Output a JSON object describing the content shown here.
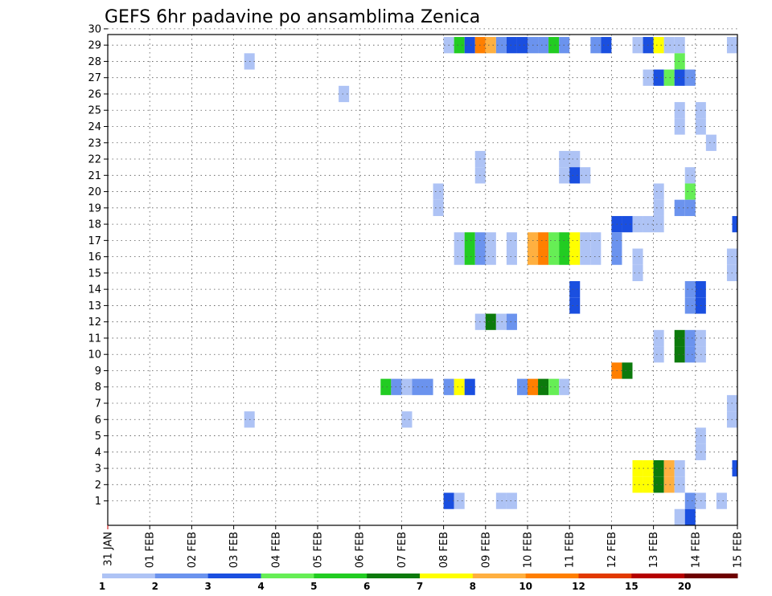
{
  "chart_data": {
    "type": "heatmap",
    "title": "GEFS 6hr padavine po ansamblima Zenica",
    "x_tick_labels": [
      "31 JAN",
      "01 FEB",
      "02 FEB",
      "03 FEB",
      "04 FEB",
      "05 FEB",
      "06 FEB",
      "07 FEB",
      "08 FEB",
      "09 FEB",
      "10 FEB",
      "11 FEB",
      "12 FEB",
      "13 FEB",
      "14 FEB",
      "15 FEB"
    ],
    "y_tick_labels": [
      "1",
      "2",
      "3",
      "4",
      "5",
      "6",
      "7",
      "8",
      "9",
      "10",
      "11",
      "12",
      "13",
      "14",
      "15",
      "16",
      "17",
      "18",
      "19",
      "20",
      "21",
      "22",
      "23",
      "24",
      "25",
      "26",
      "27",
      "28",
      "29",
      "30"
    ],
    "xlim_days": [
      0,
      15
    ],
    "ylim": [
      0,
      30
    ],
    "grid": true,
    "legend": {
      "placement": "bottom",
      "labels": [
        "1",
        "2",
        "3",
        "4",
        "5",
        "6",
        "7",
        "8",
        "10",
        "12",
        "15",
        "20"
      ],
      "colors": [
        "#aec3f5",
        "#6b93ee",
        "#1a4fe0",
        "#66ee55",
        "#22cc22",
        "#0c7a0c",
        "#ffff00",
        "#ffb040",
        "#ff7f00",
        "#e23a00",
        "#b50000",
        "#6e0000"
      ]
    },
    "cells": [
      {
        "m": 29,
        "d": 8.0,
        "c": 0
      },
      {
        "m": 29,
        "d": 8.25,
        "c": 4
      },
      {
        "m": 29,
        "d": 8.5,
        "c": 2
      },
      {
        "m": 29,
        "d": 8.75,
        "c": 8
      },
      {
        "m": 29,
        "d": 9.0,
        "c": 7
      },
      {
        "m": 29,
        "d": 9.25,
        "c": 1
      },
      {
        "m": 29,
        "d": 9.5,
        "c": 2
      },
      {
        "m": 29,
        "d": 9.75,
        "c": 2
      },
      {
        "m": 29,
        "d": 10.0,
        "c": 1
      },
      {
        "m": 29,
        "d": 10.25,
        "c": 1
      },
      {
        "m": 29,
        "d": 10.5,
        "c": 4
      },
      {
        "m": 29,
        "d": 10.75,
        "c": 1
      },
      {
        "m": 29,
        "d": 11.5,
        "c": 1
      },
      {
        "m": 29,
        "d": 11.75,
        "c": 2
      },
      {
        "m": 29,
        "d": 12.5,
        "c": 0
      },
      {
        "m": 29,
        "d": 12.75,
        "c": 2
      },
      {
        "m": 29,
        "d": 13.0,
        "c": 6
      },
      {
        "m": 29,
        "d": 13.25,
        "c": 0
      },
      {
        "m": 29,
        "d": 13.5,
        "c": 0
      },
      {
        "m": 29,
        "d": 14.75,
        "c": 0
      },
      {
        "m": 28,
        "d": 3.25,
        "c": 0
      },
      {
        "m": 28,
        "d": 13.5,
        "c": 3
      },
      {
        "m": 27,
        "d": 12.75,
        "c": 0
      },
      {
        "m": 27,
        "d": 13.0,
        "c": 2
      },
      {
        "m": 27,
        "d": 13.25,
        "c": 3
      },
      {
        "m": 27,
        "d": 13.5,
        "c": 2
      },
      {
        "m": 27,
        "d": 13.75,
        "c": 1
      },
      {
        "m": 26,
        "d": 5.5,
        "c": 0
      },
      {
        "m": 25,
        "d": 13.5,
        "c": 0
      },
      {
        "m": 25,
        "d": 14.0,
        "c": 0
      },
      {
        "m": 24,
        "d": 13.5,
        "c": 0
      },
      {
        "m": 24,
        "d": 14.0,
        "c": 0
      },
      {
        "m": 23,
        "d": 14.25,
        "c": 0
      },
      {
        "m": 22,
        "d": 8.75,
        "c": 0
      },
      {
        "m": 22,
        "d": 10.75,
        "c": 0
      },
      {
        "m": 22,
        "d": 11.0,
        "c": 0
      },
      {
        "m": 21,
        "d": 8.75,
        "c": 0
      },
      {
        "m": 21,
        "d": 10.75,
        "c": 0
      },
      {
        "m": 21,
        "d": 11.0,
        "c": 2
      },
      {
        "m": 21,
        "d": 11.25,
        "c": 0
      },
      {
        "m": 21,
        "d": 13.75,
        "c": 0
      },
      {
        "m": 20,
        "d": 7.75,
        "c": 0
      },
      {
        "m": 20,
        "d": 13.0,
        "c": 0
      },
      {
        "m": 20,
        "d": 13.75,
        "c": 3
      },
      {
        "m": 19,
        "d": 7.75,
        "c": 0
      },
      {
        "m": 19,
        "d": 13.0,
        "c": 0
      },
      {
        "m": 19,
        "d": 13.5,
        "c": 1
      },
      {
        "m": 19,
        "d": 13.75,
        "c": 1
      },
      {
        "m": 18,
        "d": 12.0,
        "c": 2
      },
      {
        "m": 18,
        "d": 12.25,
        "c": 2
      },
      {
        "m": 18,
        "d": 12.5,
        "c": 0
      },
      {
        "m": 18,
        "d": 12.75,
        "c": 0
      },
      {
        "m": 18,
        "d": 13.0,
        "c": 0
      },
      {
        "m": 18,
        "d": 14.875,
        "c": 2
      },
      {
        "m": 17,
        "d": 8.25,
        "c": 0
      },
      {
        "m": 17,
        "d": 8.5,
        "c": 4
      },
      {
        "m": 17,
        "d": 8.75,
        "c": 1
      },
      {
        "m": 17,
        "d": 9.0,
        "c": 0
      },
      {
        "m": 17,
        "d": 9.5,
        "c": 0
      },
      {
        "m": 17,
        "d": 10.0,
        "c": 7
      },
      {
        "m": 17,
        "d": 10.25,
        "c": 8
      },
      {
        "m": 17,
        "d": 10.5,
        "c": 3
      },
      {
        "m": 17,
        "d": 10.75,
        "c": 4
      },
      {
        "m": 17,
        "d": 11.0,
        "c": 6
      },
      {
        "m": 17,
        "d": 11.25,
        "c": 0
      },
      {
        "m": 17,
        "d": 11.5,
        "c": 0
      },
      {
        "m": 17,
        "d": 12.0,
        "c": 1
      },
      {
        "m": 16,
        "d": 8.25,
        "c": 0
      },
      {
        "m": 16,
        "d": 8.5,
        "c": 4
      },
      {
        "m": 16,
        "d": 8.75,
        "c": 1
      },
      {
        "m": 16,
        "d": 9.0,
        "c": 0
      },
      {
        "m": 16,
        "d": 9.5,
        "c": 0
      },
      {
        "m": 16,
        "d": 10.0,
        "c": 7
      },
      {
        "m": 16,
        "d": 10.25,
        "c": 8
      },
      {
        "m": 16,
        "d": 10.5,
        "c": 3
      },
      {
        "m": 16,
        "d": 10.75,
        "c": 4
      },
      {
        "m": 16,
        "d": 11.0,
        "c": 6
      },
      {
        "m": 16,
        "d": 11.25,
        "c": 0
      },
      {
        "m": 16,
        "d": 11.5,
        "c": 0
      },
      {
        "m": 16,
        "d": 12.0,
        "c": 1
      },
      {
        "m": 16,
        "d": 12.5,
        "c": 0
      },
      {
        "m": 16,
        "d": 14.75,
        "c": 0
      },
      {
        "m": 15,
        "d": 12.5,
        "c": 0
      },
      {
        "m": 15,
        "d": 14.75,
        "c": 0
      },
      {
        "m": 14,
        "d": 11.0,
        "c": 2
      },
      {
        "m": 14,
        "d": 13.75,
        "c": 1
      },
      {
        "m": 14,
        "d": 14.0,
        "c": 2
      },
      {
        "m": 13,
        "d": 11.0,
        "c": 2
      },
      {
        "m": 13,
        "d": 13.75,
        "c": 1
      },
      {
        "m": 13,
        "d": 14.0,
        "c": 2
      },
      {
        "m": 12,
        "d": 8.75,
        "c": 0
      },
      {
        "m": 12,
        "d": 9.0,
        "c": 5
      },
      {
        "m": 12,
        "d": 9.25,
        "c": 0
      },
      {
        "m": 12,
        "d": 9.5,
        "c": 1
      },
      {
        "m": 11,
        "d": 13.0,
        "c": 0
      },
      {
        "m": 11,
        "d": 13.5,
        "c": 5
      },
      {
        "m": 11,
        "d": 13.75,
        "c": 1
      },
      {
        "m": 11,
        "d": 14.0,
        "c": 0
      },
      {
        "m": 10,
        "d": 13.0,
        "c": 0
      },
      {
        "m": 10,
        "d": 13.5,
        "c": 5
      },
      {
        "m": 10,
        "d": 13.75,
        "c": 1
      },
      {
        "m": 10,
        "d": 14.0,
        "c": 0
      },
      {
        "m": 9,
        "d": 12.0,
        "c": 8
      },
      {
        "m": 9,
        "d": 12.25,
        "c": 5
      },
      {
        "m": 8,
        "d": 6.5,
        "c": 4
      },
      {
        "m": 8,
        "d": 6.75,
        "c": 1
      },
      {
        "m": 8,
        "d": 7.0,
        "c": 0
      },
      {
        "m": 8,
        "d": 7.25,
        "c": 1
      },
      {
        "m": 8,
        "d": 7.5,
        "c": 1
      },
      {
        "m": 8,
        "d": 8.0,
        "c": 1
      },
      {
        "m": 8,
        "d": 8.25,
        "c": 6
      },
      {
        "m": 8,
        "d": 8.5,
        "c": 2
      },
      {
        "m": 8,
        "d": 9.75,
        "c": 1
      },
      {
        "m": 8,
        "d": 10.0,
        "c": 8
      },
      {
        "m": 8,
        "d": 10.25,
        "c": 5
      },
      {
        "m": 8,
        "d": 10.5,
        "c": 3
      },
      {
        "m": 8,
        "d": 10.75,
        "c": 0
      },
      {
        "m": 7,
        "d": 14.75,
        "c": 0
      },
      {
        "m": 6,
        "d": 3.25,
        "c": 0
      },
      {
        "m": 6,
        "d": 7.0,
        "c": 0
      },
      {
        "m": 6,
        "d": 14.75,
        "c": 0
      },
      {
        "m": 5,
        "d": 14.0,
        "c": 0
      },
      {
        "m": 4,
        "d": 14.0,
        "c": 0
      },
      {
        "m": 3,
        "d": 12.5,
        "c": 6
      },
      {
        "m": 3,
        "d": 12.75,
        "c": 6
      },
      {
        "m": 3,
        "d": 13.0,
        "c": 5
      },
      {
        "m": 3,
        "d": 13.25,
        "c": 7
      },
      {
        "m": 3,
        "d": 13.5,
        "c": 0
      },
      {
        "m": 3,
        "d": 14.875,
        "c": 2
      },
      {
        "m": 2,
        "d": 12.5,
        "c": 6
      },
      {
        "m": 2,
        "d": 12.75,
        "c": 6
      },
      {
        "m": 2,
        "d": 13.0,
        "c": 5
      },
      {
        "m": 2,
        "d": 13.25,
        "c": 7
      },
      {
        "m": 2,
        "d": 13.5,
        "c": 0
      },
      {
        "m": 1,
        "d": 8.0,
        "c": 2
      },
      {
        "m": 1,
        "d": 8.25,
        "c": 0
      },
      {
        "m": 1,
        "d": 9.25,
        "c": 0
      },
      {
        "m": 1,
        "d": 9.5,
        "c": 0
      },
      {
        "m": 1,
        "d": 13.75,
        "c": 1
      },
      {
        "m": 1,
        "d": 14.0,
        "c": 0
      },
      {
        "m": 1,
        "d": 14.5,
        "c": 0
      },
      {
        "m": 0,
        "d": 13.5,
        "c": 0
      },
      {
        "m": 0,
        "d": 13.75,
        "c": 2
      }
    ]
  }
}
